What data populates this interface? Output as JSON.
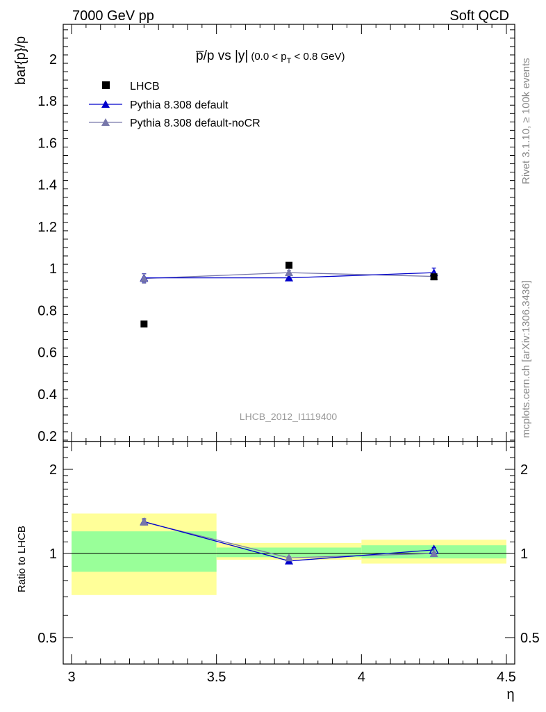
{
  "header": {
    "left": "7000 GeV pp",
    "right": "Soft QCD"
  },
  "side_labels": {
    "rivet": "Rivet 3.1.10, ≥ 100k events",
    "mcplots": "mcplots.cern.ch [arXiv:1306.3436]"
  },
  "colors": {
    "data": "#000000",
    "default": "#0000cc",
    "noCR": "#7777aa",
    "band_inner": "#99ff99",
    "band_outer": "#ffff99"
  },
  "chart_data": [
    {
      "type": "scatter",
      "title_main": "p̅/p vs |y|",
      "title_range": "(0.0 < p",
      "title_sub": "T",
      "title_tail": " < 0.8 GeV)",
      "watermark": "LHCB_2012_I1119400",
      "ylabel": "bar{p}/p",
      "xlim": [
        3,
        4.5
      ],
      "ylim": [
        0.18,
        2.17
      ],
      "yticks": [
        0.2,
        0.4,
        0.6,
        0.8,
        1,
        1.2,
        1.4,
        1.6,
        1.8,
        2
      ],
      "ytick_labels": [
        "0.2",
        "0.4",
        "0.6",
        "0.8",
        "1",
        "1.2",
        "1.4",
        "1.6",
        "1.8",
        "2"
      ],
      "legend": [
        "LHCB",
        "Pythia 8.308 default",
        "Pythia 8.308 default-noCR"
      ],
      "legend_position": "top-left",
      "series": [
        {
          "name": "LHCB",
          "x": [
            3.25,
            3.75,
            4.25
          ],
          "y": [
            0.735,
            1.015,
            0.96
          ],
          "marker": "square"
        },
        {
          "name": "Pythia 8.308 default",
          "x": [
            3.25,
            3.75,
            4.25
          ],
          "y": [
            0.955,
            0.955,
            0.98
          ],
          "yerr": [
            0.02,
            0.012,
            0.022
          ],
          "marker": "triangle"
        },
        {
          "name": "Pythia 8.308 default-noCR",
          "x": [
            3.25,
            3.75,
            4.25
          ],
          "y": [
            0.952,
            0.98,
            0.962
          ],
          "yerr": [
            0.022,
            0.01,
            0.01
          ],
          "marker": "triangle"
        }
      ]
    },
    {
      "type": "scatter",
      "ylabel": "Ratio to LHCB",
      "xlabel": "η",
      "yscale": "log",
      "xlim": [
        3,
        4.5
      ],
      "ylim": [
        0.4,
        2.4
      ],
      "xticks": [
        3,
        3.5,
        4,
        4.5
      ],
      "xtick_labels": [
        "3",
        "3.5",
        "4",
        "4.5"
      ],
      "yticks": [
        0.5,
        1,
        2
      ],
      "ytick_labels": [
        "0.5",
        "1",
        "2"
      ],
      "bands": [
        {
          "x0": 3.0,
          "x1": 3.5,
          "outer": [
            0.71,
            1.39
          ],
          "inner": [
            0.86,
            1.2
          ]
        },
        {
          "x0": 3.5,
          "x1": 4.0,
          "outer": [
            0.95,
            1.09
          ],
          "inner": [
            0.97,
            1.05
          ]
        },
        {
          "x0": 4.0,
          "x1": 4.5,
          "outer": [
            0.92,
            1.12
          ],
          "inner": [
            0.96,
            1.07
          ]
        }
      ],
      "series": [
        {
          "name": "Pythia 8.308 default",
          "x": [
            3.25,
            3.75,
            4.25
          ],
          "y": [
            1.3,
            0.94,
            1.03
          ],
          "yerr": [
            0.03,
            0.01,
            0.02
          ]
        },
        {
          "name": "Pythia 8.308 default-noCR",
          "x": [
            3.25,
            3.75,
            4.25
          ],
          "y": [
            1.295,
            0.965,
            1.0
          ],
          "yerr": [
            0.03,
            0.01,
            0.01
          ]
        }
      ]
    }
  ]
}
